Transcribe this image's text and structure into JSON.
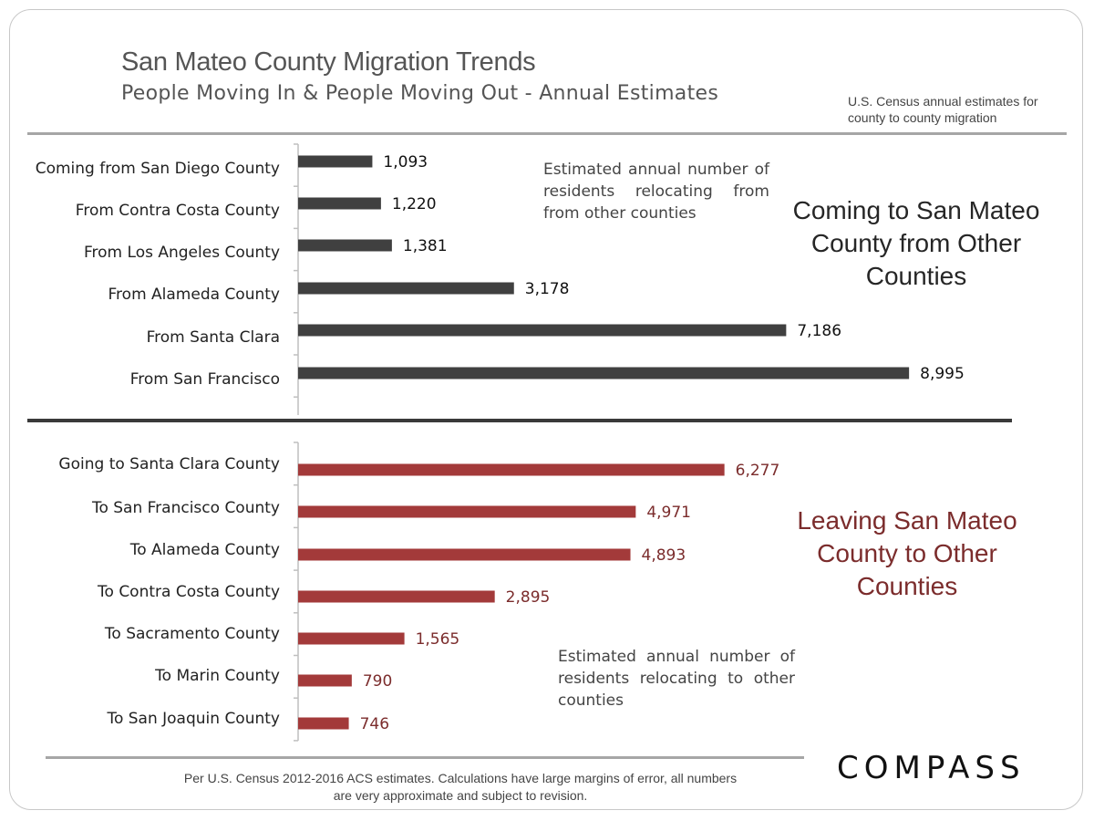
{
  "title": "San Mateo County Migration Trends",
  "subtitle": "People Moving In & People Moving Out - Annual Estimates",
  "source_note": "U.S. Census annual estimates for county to county migration",
  "sections": {
    "incoming_heading": "Coming to San Mateo County from Other Counties",
    "incoming_note": "Estimated annual number of residents relocating from from other counties",
    "outgoing_heading": "Leaving San Mateo County to Other Counties",
    "outgoing_note": "Estimated annual number of residents relocating to other counties"
  },
  "footer": "Per U.S. Census 2012-2016 ACS estimates. Calculations have large margins of error, all numbers are very approximate and subject to revision.",
  "logo": "COMPASS",
  "colors": {
    "incoming": "#404040",
    "outgoing": "#a33a3a",
    "outgoing_text": "#7b2c2c"
  },
  "chart_data": [
    {
      "type": "bar",
      "orientation": "horizontal",
      "categories": [
        "Coming from San Diego County",
        "From Contra Costa County",
        "From Los Angeles County",
        "From Alameda County",
        "From Santa Clara",
        "From San Francisco"
      ],
      "values": [
        1093,
        1220,
        1381,
        3178,
        7186,
        8995
      ],
      "value_labels": [
        "1,093",
        "1,220",
        "1,381",
        "3,178",
        "7,186",
        "8,995"
      ]
    },
    {
      "type": "bar",
      "orientation": "horizontal",
      "categories": [
        "Going to Santa Clara County",
        "To San Francisco County",
        "To Alameda County",
        "To Contra Costa County",
        "To Sacramento County",
        "To Marin County",
        "To San Joaquin County"
      ],
      "values": [
        6277,
        4971,
        4893,
        2895,
        1565,
        790,
        746
      ],
      "value_labels": [
        "6,277",
        "4,971",
        "4,893",
        "2,895",
        "1,565",
        "790",
        "746"
      ]
    }
  ]
}
